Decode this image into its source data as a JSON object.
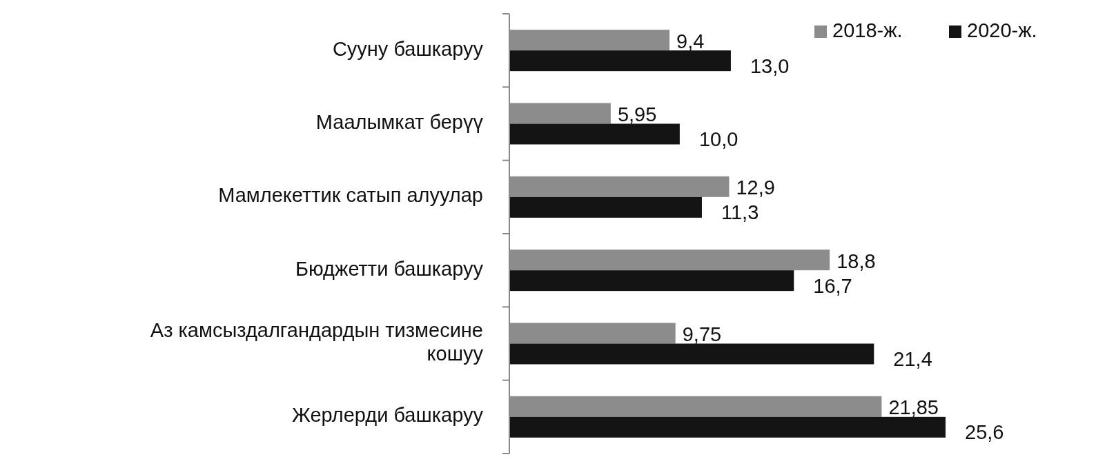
{
  "chart_data": {
    "type": "bar",
    "orientation": "horizontal",
    "categories": [
      "Сууну башкаруу",
      "Маалымкат берүү",
      "Мамлекеттик сатып алуулар",
      "Бюджетти башкаруу",
      "Аз камсыздалгандардын тизмесине кошуу",
      "Жерлерди башкаруу"
    ],
    "series": [
      {
        "name": "2018-ж.",
        "color": "#8c8c8c",
        "values": [
          9.4,
          5.95,
          12.9,
          18.8,
          9.75,
          21.85
        ],
        "value_labels": [
          "9,4",
          "5,95",
          "12,9",
          "18,8",
          "9,75",
          "21,85"
        ]
      },
      {
        "name": "2020-ж.",
        "color": "#141414",
        "values": [
          13.0,
          10.0,
          11.3,
          16.7,
          21.4,
          25.6
        ],
        "value_labels": [
          "13,0",
          "10,0",
          "11,3",
          "16,7",
          "21,4",
          "25,6"
        ]
      }
    ],
    "legend": "top right"
  }
}
